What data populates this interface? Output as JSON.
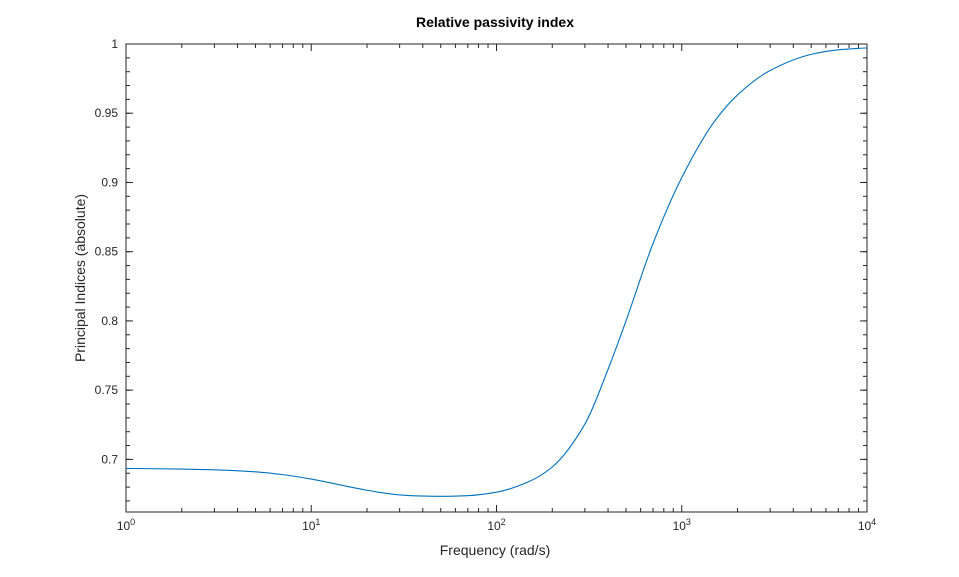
{
  "chart_data": {
    "type": "line",
    "title": "Relative passivity index",
    "xlabel": "Frequency (rad/s)",
    "ylabel": "Principal Indices (absolute)",
    "xscale": "log",
    "xlim": [
      1,
      10000
    ],
    "ylim": [
      0.662,
      1.0
    ],
    "grid": false,
    "x_ticks": [
      {
        "value": 1,
        "base": "10",
        "exp": "0"
      },
      {
        "value": 10,
        "base": "10",
        "exp": "1"
      },
      {
        "value": 100,
        "base": "10",
        "exp": "2"
      },
      {
        "value": 1000,
        "base": "10",
        "exp": "3"
      },
      {
        "value": 10000,
        "base": "10",
        "exp": "4"
      }
    ],
    "y_ticks": [
      {
        "value": 0.7,
        "label": "0.7"
      },
      {
        "value": 0.75,
        "label": "0.75"
      },
      {
        "value": 0.8,
        "label": "0.8"
      },
      {
        "value": 0.85,
        "label": "0.85"
      },
      {
        "value": 0.9,
        "label": "0.9"
      },
      {
        "value": 0.95,
        "label": "0.95"
      },
      {
        "value": 1.0,
        "label": "1"
      }
    ],
    "series": [
      {
        "color": "#0072BD",
        "x": [
          1,
          2,
          3,
          5,
          7,
          10,
          15,
          20,
          30,
          40,
          50,
          70,
          100,
          150,
          200,
          300,
          400,
          500,
          700,
          1000,
          1500,
          2000,
          3000,
          5000,
          7000,
          10000
        ],
        "y": [
          0.6935,
          0.693,
          0.6925,
          0.691,
          0.689,
          0.6858,
          0.681,
          0.6777,
          0.6743,
          0.6735,
          0.6733,
          0.6738,
          0.6763,
          0.684,
          0.6945,
          0.7255,
          0.765,
          0.8,
          0.856,
          0.9035,
          0.944,
          0.9632,
          0.9809,
          0.9925,
          0.9958,
          0.9972
        ]
      }
    ]
  }
}
